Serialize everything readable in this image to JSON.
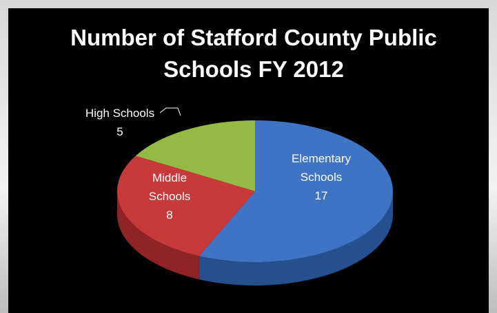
{
  "chart_data": {
    "type": "pie",
    "title_lines": [
      "Number of Stafford County Public",
      "Schools FY 2012"
    ],
    "slices": [
      {
        "category": "Elementary Schools",
        "label_lines": [
          "Elementary",
          "Schools"
        ],
        "value": 17,
        "color": "#3f74c4",
        "side_color": "#24508f",
        "label_color": "#ffffff"
      },
      {
        "category": "Middle Schools",
        "label_lines": [
          "Middle",
          "Schools"
        ],
        "value": 8,
        "color": "#c8393a",
        "side_color": "#8f2325",
        "label_color": "#ffffff"
      },
      {
        "category": "High Schools",
        "label_lines": [
          "High Schools"
        ],
        "value": 5,
        "color": "#93bb44",
        "side_color": "#5e7d27",
        "label_color": "#ffffff"
      }
    ],
    "legend": "none",
    "style": "3d"
  }
}
